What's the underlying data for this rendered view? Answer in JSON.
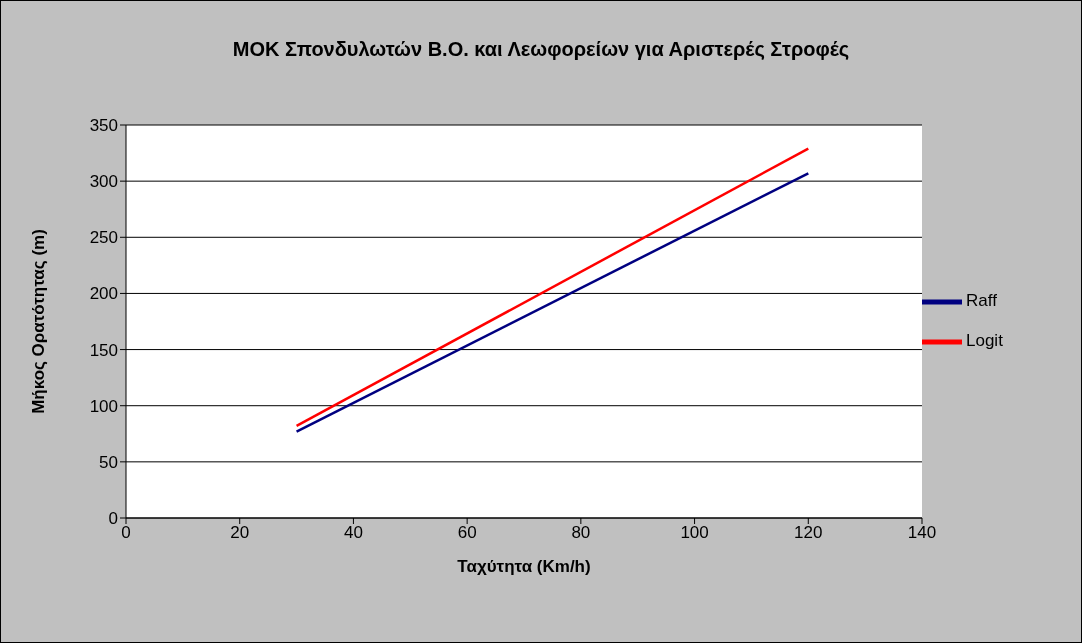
{
  "chart_data": {
    "type": "line",
    "title": "ΜΟΚ Σπονδυλωτών Β.Ο.  και Λεωφορείων για Αριστερές Στροφές",
    "xlabel": "Ταχύτητα (Km/h)",
    "ylabel": "Μήκος Ορατότητας (m)",
    "x": [
      30,
      120
    ],
    "series": [
      {
        "name": "Raff",
        "color": "#000080",
        "values": [
          77,
          307
        ]
      },
      {
        "name": "Logit",
        "color": "#ff0000",
        "values": [
          82,
          329
        ]
      }
    ],
    "xlim": [
      0,
      140
    ],
    "xticks": [
      0,
      20,
      40,
      60,
      80,
      100,
      120,
      140
    ],
    "ylim": [
      0,
      350
    ],
    "yticks": [
      0,
      50,
      100,
      150,
      200,
      250,
      300,
      350
    ],
    "grid": "y",
    "legend": "right",
    "marker": "none",
    "line_style": "solid"
  }
}
